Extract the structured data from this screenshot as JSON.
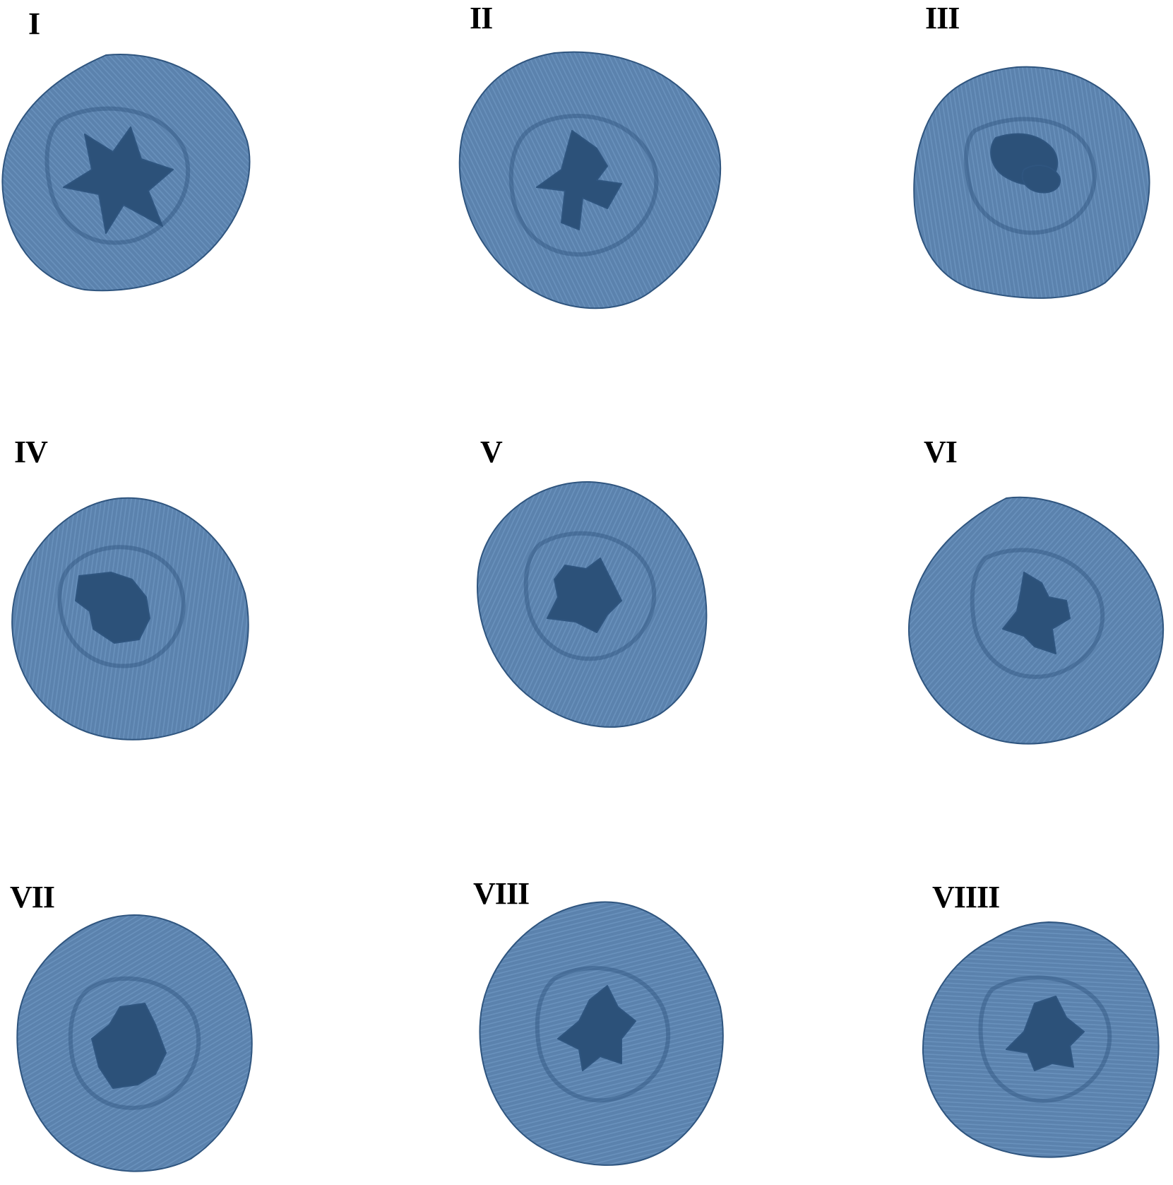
{
  "colors": {
    "berry_base": "#5b82ad",
    "berry_light": "#7098c2",
    "berry_dark": "#2f557f",
    "cavity": "#2c5179",
    "background": "#ffffff",
    "label": "#000000"
  },
  "panels": [
    {
      "label": "I",
      "cavity_shape": "star-opening"
    },
    {
      "label": "II",
      "cavity_shape": "star-opening"
    },
    {
      "label": "III",
      "cavity_shape": "split-opening"
    },
    {
      "label": "IV",
      "cavity_shape": "round-opening"
    },
    {
      "label": "V",
      "cavity_shape": "star-opening"
    },
    {
      "label": "VI",
      "cavity_shape": "star-opening"
    },
    {
      "label": "VII",
      "cavity_shape": "star-opening"
    },
    {
      "label": "VIII",
      "cavity_shape": "star-opening"
    },
    {
      "label": "VIIII",
      "cavity_shape": "star-opening"
    }
  ]
}
